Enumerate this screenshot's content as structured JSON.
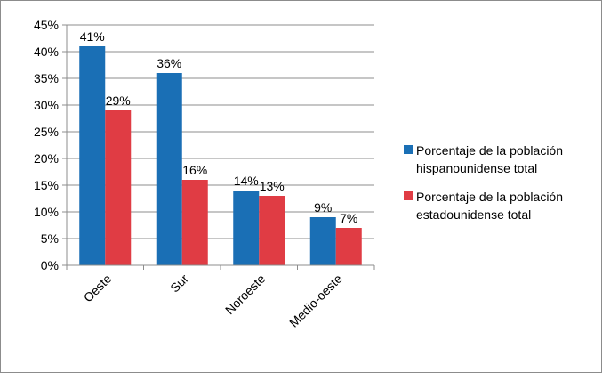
{
  "chart_data": {
    "type": "bar",
    "categories": [
      "Oeste",
      "Sur",
      "Noroeste",
      "Medio-oeste"
    ],
    "series": [
      {
        "name": "Porcentaje de la población hispanounidense total",
        "legend_lines": [
          "Porcentaje de la población",
          "hispanounidense total"
        ],
        "values": [
          41,
          36,
          14,
          9
        ],
        "labels": [
          "41%",
          "36%",
          "14%",
          "9%"
        ],
        "color": "#1a6fb5"
      },
      {
        "name": "Porcentaje de la población estadounidense total",
        "legend_lines": [
          "Porcentaje de la población",
          "estadounidense total"
        ],
        "values": [
          29,
          16,
          13,
          7
        ],
        "labels": [
          "29%",
          "16%",
          "13%",
          "7%"
        ],
        "color": "#e03c44"
      }
    ],
    "yticks": [
      "0%",
      "5%",
      "10%",
      "15%",
      "20%",
      "25%",
      "30%",
      "35%",
      "40%",
      "45%"
    ],
    "ylim": [
      0,
      45
    ],
    "grid": true,
    "legend_position": "right",
    "title": "",
    "xlabel": "",
    "ylabel": ""
  }
}
